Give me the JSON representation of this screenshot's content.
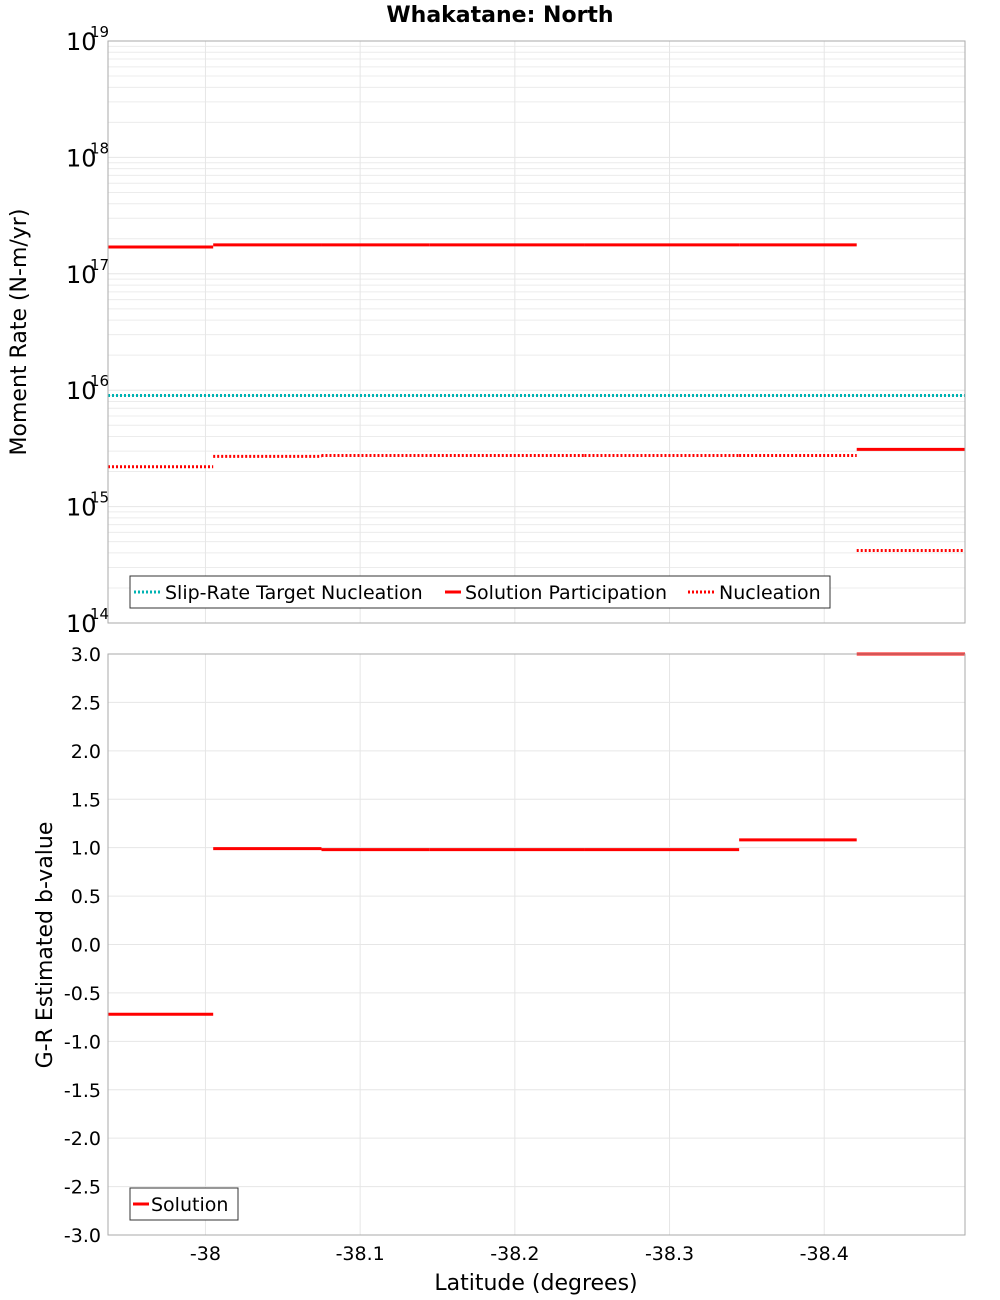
{
  "figure": {
    "title": "Whakatane: North",
    "xlabel": "Latitude (degrees)"
  },
  "colors": {
    "solution": "#ff0000",
    "target": "#00b3b3",
    "grid": "#e6e6e6",
    "minor_grid": "#ececec",
    "frame": "#aaaaaa"
  },
  "chart_data": [
    {
      "type": "line",
      "title": "Whakatane: North",
      "xlabel": "Latitude (degrees)",
      "ylabel": "Moment Rate (N-m/yr)",
      "yscale": "log",
      "xlim": [
        -37.937,
        -38.491
      ],
      "ylim_exponents": [
        14,
        19
      ],
      "xticks": [
        -38,
        -38.1,
        -38.2,
        -38.3,
        -38.4
      ],
      "xtick_labels": [
        "-38",
        "-38.1",
        "-38.2",
        "-38.3",
        "-38.4"
      ],
      "ytick_base": "10",
      "ytick_exponents": [
        "19",
        "18",
        "17",
        "16",
        "15",
        "14"
      ],
      "legend": [
        "Slip-Rate Target Nucleation",
        "Solution Participation",
        "Nucleation"
      ],
      "legend_position": "bottom-left",
      "series": [
        {
          "name": "Slip-Rate Target Nucleation",
          "style": "dotted",
          "color": "#00b3b3",
          "segments": [
            [
              -37.937,
              -38.491,
              9000000000000000.0
            ]
          ]
        },
        {
          "name": "Solution Participation",
          "style": "solid",
          "color": "#ff0000",
          "segments": [
            [
              -37.937,
              -38.005,
              1.7e+17
            ],
            [
              -38.005,
              -38.075,
              1.77e+17
            ],
            [
              -38.075,
              -38.145,
              1.77e+17
            ],
            [
              -38.145,
              -38.245,
              1.77e+17
            ],
            [
              -38.245,
              -38.345,
              1.77e+17
            ],
            [
              -38.345,
              -38.421,
              1.77e+17
            ],
            [
              -38.421,
              -38.491,
              3100000000000000.0
            ]
          ]
        },
        {
          "name": "Nucleation",
          "style": "dotted",
          "color": "#ff0000",
          "segments": [
            [
              -37.937,
              -38.005,
              2200000000000000.0
            ],
            [
              -38.005,
              -38.075,
              2700000000000000.0
            ],
            [
              -38.075,
              -38.145,
              2750000000000000.0
            ],
            [
              -38.145,
              -38.245,
              2750000000000000.0
            ],
            [
              -38.245,
              -38.345,
              2750000000000000.0
            ],
            [
              -38.345,
              -38.421,
              2750000000000000.0
            ],
            [
              -38.421,
              -38.491,
              420000000000000.0
            ]
          ]
        }
      ]
    },
    {
      "type": "line",
      "xlabel": "Latitude (degrees)",
      "ylabel": "G-R Estimated b-value",
      "yscale": "linear",
      "xlim": [
        -37.937,
        -38.491
      ],
      "ylim": [
        -3.0,
        3.0
      ],
      "yticks": [
        3.0,
        2.5,
        2.0,
        1.5,
        1.0,
        0.5,
        0.0,
        -0.5,
        -1.0,
        -1.5,
        -2.0,
        -2.5,
        -3.0
      ],
      "ytick_labels": [
        "3.0",
        "2.5",
        "2.0",
        "1.5",
        "1.0",
        "0.5",
        "0.0",
        "-0.5",
        "-1.0",
        "-1.5",
        "-2.0",
        "-2.5",
        "-3.0"
      ],
      "xticks": [
        -38,
        -38.1,
        -38.2,
        -38.3,
        -38.4
      ],
      "xtick_labels": [
        "-38",
        "-38.1",
        "-38.2",
        "-38.3",
        "-38.4"
      ],
      "legend": [
        "Solution"
      ],
      "legend_position": "bottom-left",
      "series": [
        {
          "name": "Solution",
          "style": "solid",
          "color": "#ff0000",
          "segments": [
            [
              -37.937,
              -38.005,
              -0.72
            ],
            [
              -38.005,
              -38.075,
              0.99
            ],
            [
              -38.075,
              -38.145,
              0.98
            ],
            [
              -38.145,
              -38.245,
              0.98
            ],
            [
              -38.245,
              -38.345,
              0.98
            ],
            [
              -38.345,
              -38.421,
              1.08
            ],
            [
              -38.421,
              -38.491,
              3.0
            ]
          ]
        }
      ]
    }
  ]
}
